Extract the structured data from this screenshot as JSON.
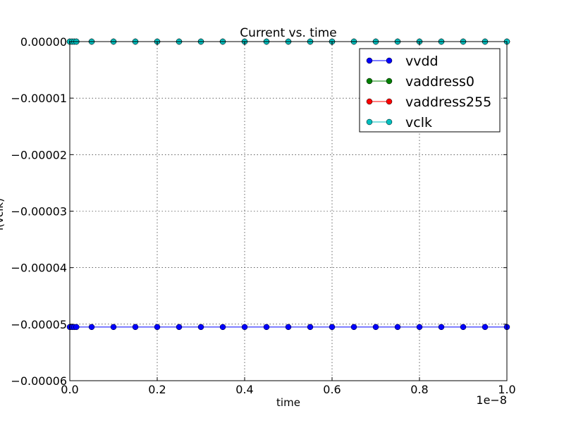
{
  "chart_data": {
    "type": "line",
    "title": "Current vs. time",
    "xlabel": "time",
    "ylabel": "i(vclk)",
    "x_offset_text": "1e−8",
    "xlim": [
      0,
      1.0
    ],
    "ylim": [
      -6e-05,
      0
    ],
    "x_tick_values": [
      0,
      0.2,
      0.4,
      0.6,
      0.8,
      1.0
    ],
    "x_tick_labels": [
      "0.0",
      "0.2",
      "0.4",
      "0.6",
      "0.8",
      "1.0"
    ],
    "y_tick_values": [
      0,
      -1e-05,
      -2e-05,
      -3e-05,
      -4e-05,
      -5e-05,
      -6e-05
    ],
    "y_tick_labels": [
      "0.00000",
      "−0.00001",
      "−0.00002",
      "−0.00003",
      "−0.00004",
      "−0.00005",
      "−0.00006"
    ],
    "grid": true,
    "legend_position": "top-right",
    "x": [
      0,
      0.005,
      0.01,
      0.015,
      0.05,
      0.1,
      0.15,
      0.2,
      0.25,
      0.3,
      0.35,
      0.4,
      0.45,
      0.5,
      0.55,
      0.6,
      0.65,
      0.7,
      0.75,
      0.8,
      0.85,
      0.9,
      0.95,
      1.0
    ],
    "series": [
      {
        "name": "vvdd",
        "color": "#0000ff",
        "values": [
          -5.05e-05,
          -5.05e-05,
          -5.05e-05,
          -5.05e-05,
          -5.05e-05,
          -5.05e-05,
          -5.05e-05,
          -5.05e-05,
          -5.05e-05,
          -5.05e-05,
          -5.05e-05,
          -5.05e-05,
          -5.05e-05,
          -5.05e-05,
          -5.05e-05,
          -5.05e-05,
          -5.05e-05,
          -5.05e-05,
          -5.05e-05,
          -5.05e-05,
          -5.05e-05,
          -5.05e-05,
          -5.05e-05,
          -5.05e-05
        ]
      },
      {
        "name": "vaddress0",
        "color": "#008000",
        "values": [
          0,
          0,
          0,
          0,
          0,
          0,
          0,
          0,
          0,
          0,
          0,
          0,
          0,
          0,
          0,
          0,
          0,
          0,
          0,
          0,
          0,
          0,
          0,
          0
        ]
      },
      {
        "name": "vaddress255",
        "color": "#ff0000",
        "values": [
          0,
          0,
          0,
          0,
          0,
          0,
          0,
          0,
          0,
          0,
          0,
          0,
          0,
          0,
          0,
          0,
          0,
          0,
          0,
          0,
          0,
          0,
          0,
          0
        ]
      },
      {
        "name": "vclk",
        "color": "#00bfbf",
        "values": [
          0,
          0,
          0,
          0,
          0,
          0,
          0,
          0,
          0,
          0,
          0,
          0,
          0,
          0,
          0,
          0,
          0,
          0,
          0,
          0,
          0,
          0,
          0,
          0
        ]
      }
    ]
  }
}
